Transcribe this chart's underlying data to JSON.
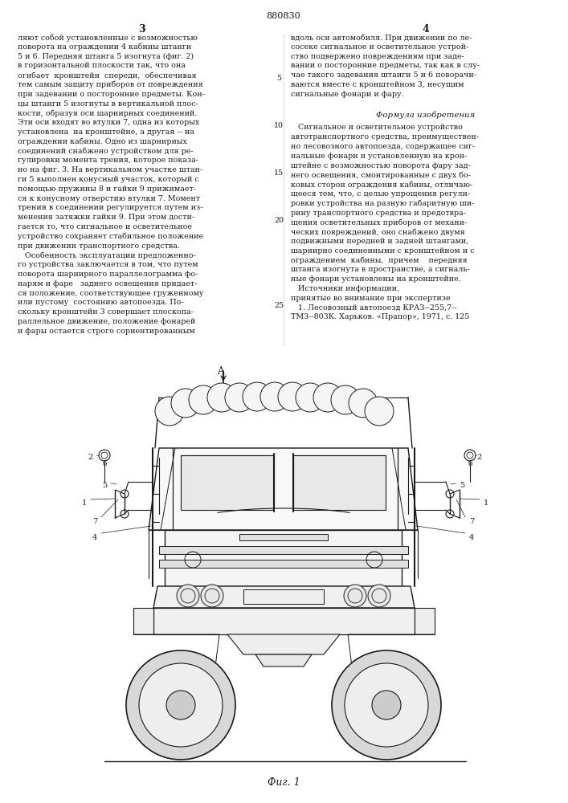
{
  "page_number_center": "880830",
  "col_left_num": "3",
  "col_right_num": "4",
  "background_color": "#ffffff",
  "text_color": "#1a1a1a",
  "font_size_body": 6.8,
  "fig_label": "Фиг. 1",
  "col_left_text": [
    "ляют собой установленные с возможностью",
    "поворота на ограждении 4 кабины штанги",
    "5 и 6. Передняя штанга 5 изогнута (фиг. 2)",
    "в горизонтальной плоскости так, что она",
    "огибает  кронштейн  спереди,  обеспечивая",
    "тем самым защиту приборов от повреждения",
    "при задевании о посторонние предметы. Кон-",
    "цы штанги 5 изогнуты в вертикальной плос-",
    "кости, образуя оси шарнирных соединений.",
    "Эти оси входят во втулки 7, одна из которых",
    "установлена  на кронштейне, а другая -- на",
    "ограждении кабины. Одно из шарнирных",
    "соединений снабжено устройством для ре-",
    "гулировки момента трения, которое показа-",
    "но на фиг. 3. На вертикальном участке штан-",
    "ги 5 выполнен конусный участок, который с",
    "помощью пружины 8 и гайки 9 прижимает-",
    "ся к конусному отверстию втулки 7. Момент",
    "трения в соединении регулируется путем из-",
    "менения затяжки гайки 9. При этом дости-",
    "гается то, что сигнальное и осветительное",
    "устройство сохраняет стабильное положение",
    "при движении транспортного средства.",
    "   Особенность эксплуатации предложенно-",
    "го устройства заключается в том, что путем",
    "поворота шарнирного параллелограмма фо-",
    "нарям и фаре   заднего освещения придает-"
  ],
  "col_left_text_bottom": [
    "ся положение, соответствующее груженному",
    "или пустому  состоянию автопоезда. По-",
    "скольку кронштейн 3 совершает плоскопа-",
    "раллельное движение, положение фонарей",
    "и фары остается строго сориентированным"
  ],
  "col_right_text_1": [
    "вдоль оси автомобиля. При движении по ле-",
    "сосеке сигнальное и осветительное устрой-",
    "ство подвержено повреждениям при заде-",
    "вании о посторонние предметы, так как в слу-",
    "чае такого задевания штанги 5 и 6 поворачи-",
    "ваются вместе с кронштейном 3, несущим",
    "сигнальные фонари и фару."
  ],
  "formula_header": "Формула изобретения",
  "col_right_text_2": [
    "   Сигнальное и осветительное устройство",
    "автотранспортного средства, преимуществен-",
    "но лесовозного автопоезда, содержащее сиг-",
    "нальные фонари и установленную на крон-",
    "штейне с возможностью поворота фару зад-",
    "него освещения, смонтированные с двух бо-",
    "ковых сторон ограждения кабины, отличаю-",
    "щееся тем, что, с целью упрощения регули-",
    "ровки устройства на разную габаритную ши-",
    "рину транспортного средства и предотвра-",
    "щения осветительных приборов от механи-",
    "ческих повреждений, оно снабжено двумя",
    "подвижными передней и задней штангами,",
    "шарнирно соединенными с кронштейном и с",
    "ограждением  кабины,  причем    передняя",
    "штанга изогнута в пространстве, а сигналь-"
  ],
  "col_right_text_bottom": [
    "ные фонари установлены на кронштейне.",
    "   Источники информации,",
    "принятые во внимание при экспертизе",
    "   1. Лесовозный автопоезд КРАЗ--255,7--",
    "ТМЗ--803К. Харьков. «Прапор», 1971, с. 125"
  ]
}
